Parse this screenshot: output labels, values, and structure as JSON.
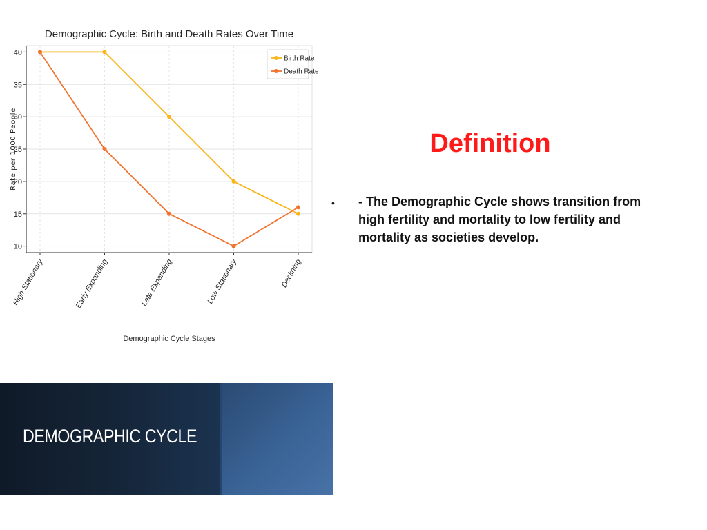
{
  "chart_data": {
    "type": "line",
    "title": "Demographic Cycle: Birth and Death Rates Over Time",
    "xlabel": "Demographic Cycle Stages",
    "ylabel": "Rate per 1000 People",
    "categories": [
      "High Stationary",
      "Early Expanding",
      "Late Expanding",
      "Low Stationary",
      "Declining"
    ],
    "series": [
      {
        "name": "Birth Rate",
        "values": [
          40,
          40,
          30,
          20,
          15
        ],
        "color": "#f9b51a"
      },
      {
        "name": "Death Rate",
        "values": [
          40,
          25,
          15,
          10,
          16
        ],
        "color": "#f0742e"
      }
    ],
    "ylim": [
      9,
      41
    ],
    "yticks": [
      10,
      15,
      20,
      25,
      30,
      35,
      40
    ],
    "grid": true,
    "legend": "top-right"
  },
  "definition": {
    "heading": "Definition",
    "bullet": "•",
    "text": "- The Demographic Cycle shows transition from high fertility and mortality to low fertility and mortality as societies develop."
  },
  "banner": {
    "title": "DEMOGRAPHIC CYCLE"
  }
}
